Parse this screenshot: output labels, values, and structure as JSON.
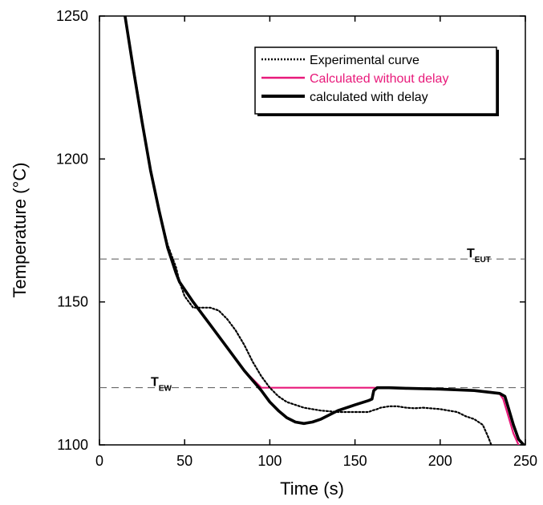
{
  "chart_data": {
    "type": "line",
    "title": "",
    "xlabel": "Time (s)",
    "ylabel": "Temperature (°C)",
    "xlim": [
      0,
      250
    ],
    "ylim": [
      1100,
      1250
    ],
    "xticks": [
      0,
      50,
      100,
      150,
      200,
      250
    ],
    "yticks": [
      1100,
      1150,
      1200,
      1250
    ],
    "grid": false,
    "legend_position": "top-right",
    "colors": {
      "experimental": "#000000",
      "without_delay": "#e8197a",
      "with_delay": "#000000",
      "reference_line": "#555555"
    },
    "reference_lines": [
      {
        "label_main": "T",
        "label_sub": "EUT",
        "y": 1165
      },
      {
        "label_main": "T",
        "label_sub": "EW",
        "y": 1120
      }
    ],
    "series": [
      {
        "name": "Experimental curve",
        "style": "dotted",
        "x": [
          15,
          20,
          25,
          30,
          35,
          40,
          45,
          47,
          50,
          55,
          60,
          65,
          70,
          75,
          80,
          85,
          90,
          95,
          100,
          105,
          110,
          115,
          120,
          125,
          130,
          140,
          150,
          158,
          160,
          163,
          165,
          170,
          175,
          180,
          185,
          190,
          200,
          210,
          215,
          220,
          225,
          228,
          230
        ],
        "y": [
          1250,
          1232,
          1214,
          1196,
          1182,
          1170,
          1162,
          1157,
          1152,
          1148,
          1148,
          1148,
          1147,
          1144,
          1140,
          1135,
          1129,
          1124,
          1120,
          1117,
          1115,
          1114,
          1113,
          1112.5,
          1112,
          1111.5,
          1111.5,
          1111.5,
          1112,
          1112.5,
          1113,
          1113.5,
          1113.5,
          1113,
          1112.8,
          1113,
          1112.5,
          1111.5,
          1110,
          1109,
          1107,
          1103,
          1100
        ]
      },
      {
        "name": "Calculated without delay",
        "style": "solid",
        "x": [
          15,
          20,
          25,
          30,
          35,
          40,
          45,
          47,
          55,
          65,
          75,
          85,
          95,
          100,
          120,
          150,
          160,
          180,
          200,
          220,
          230,
          235,
          237,
          240,
          243,
          246
        ],
        "y": [
          1250,
          1231,
          1213,
          1196,
          1182,
          1169,
          1160,
          1157,
          1150,
          1142,
          1134,
          1126,
          1120,
          1120,
          1120,
          1120,
          1120,
          1119.8,
          1119.5,
          1119,
          1118.5,
          1117.8,
          1116,
          1110,
          1104,
          1100
        ]
      },
      {
        "name": "calculated with delay",
        "style": "solid",
        "x": [
          15,
          20,
          25,
          30,
          35,
          40,
          45,
          47,
          55,
          65,
          75,
          85,
          95,
          100,
          105,
          110,
          115,
          120,
          125,
          130,
          140,
          150,
          158,
          160,
          161,
          163,
          170,
          180,
          200,
          220,
          235,
          238,
          240,
          243,
          246,
          249
        ],
        "y": [
          1250,
          1231,
          1213,
          1196,
          1182,
          1169,
          1160,
          1157,
          1150,
          1142,
          1134,
          1126,
          1119,
          1115,
          1112,
          1109.5,
          1108,
          1107.5,
          1108,
          1109,
          1112,
          1114,
          1115.5,
          1116,
          1119,
          1120,
          1120,
          1119.8,
          1119.5,
          1119,
          1118,
          1117,
          1113,
          1107,
          1102,
          1100
        ]
      }
    ]
  }
}
